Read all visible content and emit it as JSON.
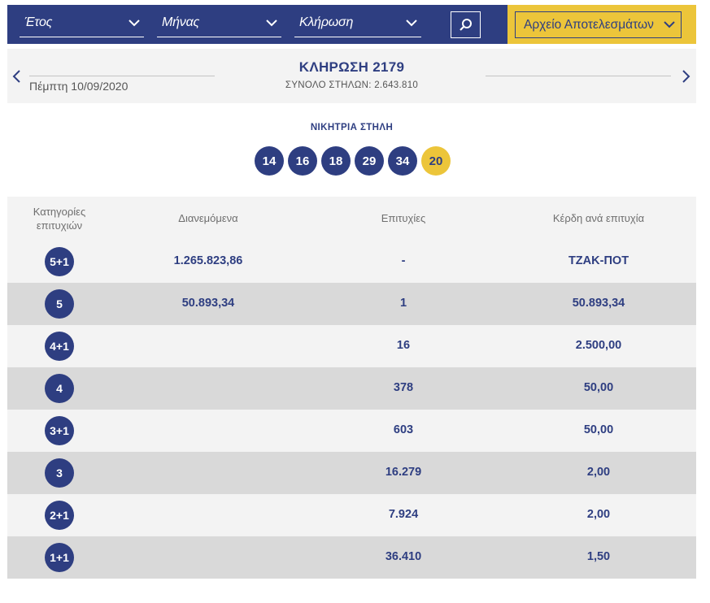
{
  "filters": {
    "year_label": "Έτος",
    "month_label": "Μήνας",
    "draw_label": "Κλήρωση",
    "archive_label": "Αρχείο Αποτελεσμάτων"
  },
  "draw": {
    "title": "ΚΛΗΡΩΣΗ 2179",
    "date": "Πέμπτη 10/09/2020",
    "total_columns": "ΣΥΝΟΛΟ ΣΤΗΛΩΝ: 2.643.810"
  },
  "winning": {
    "title": "ΝΙΚΗΤΡΙΑ ΣΤΗΛΗ",
    "numbers": [
      "14",
      "16",
      "18",
      "29",
      "34"
    ],
    "joker": "20"
  },
  "colors": {
    "primary": "#2e3e81",
    "accent": "#ecc53a"
  },
  "table": {
    "headers": {
      "category": "Κατηγορίες επιτυχιών",
      "distributed": "Διανεμόμενα",
      "winners": "Επιτυχίες",
      "prize": "Κέρδη ανά επιτυχία"
    },
    "rows": [
      {
        "category": "5+1",
        "distributed": "1.265.823,86",
        "winners": "-",
        "prize": "ΤΖΑΚ-ΠΟΤ"
      },
      {
        "category": "5",
        "distributed": "50.893,34",
        "winners": "1",
        "prize": "50.893,34"
      },
      {
        "category": "4+1",
        "distributed": "",
        "winners": "16",
        "prize": "2.500,00"
      },
      {
        "category": "4",
        "distributed": "",
        "winners": "378",
        "prize": "50,00"
      },
      {
        "category": "3+1",
        "distributed": "",
        "winners": "603",
        "prize": "50,00"
      },
      {
        "category": "3",
        "distributed": "",
        "winners": "16.279",
        "prize": "2,00"
      },
      {
        "category": "2+1",
        "distributed": "",
        "winners": "7.924",
        "prize": "2,00"
      },
      {
        "category": "1+1",
        "distributed": "",
        "winners": "36.410",
        "prize": "1,50"
      }
    ]
  }
}
